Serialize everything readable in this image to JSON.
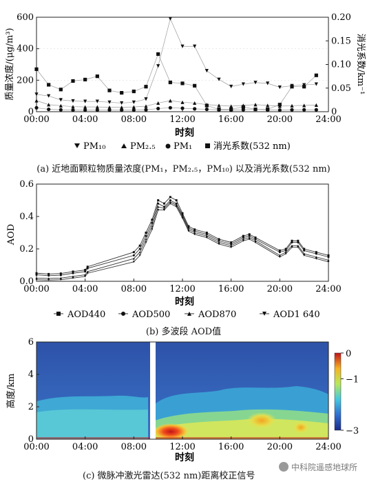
{
  "chart_data": [
    {
      "type": "scatter",
      "panel": "a",
      "xlabel": "时刻",
      "ylabel": "质量浓度/(μg/m³)",
      "ylabel_right": "消光系数/km⁻¹",
      "xticks": [
        "00:00",
        "04:00",
        "08:00",
        "12:00",
        "16:00",
        "20:00",
        "24:00"
      ],
      "yticks": [
        "0",
        "200",
        "400",
        "600"
      ],
      "yticks_right": [
        "0",
        "0.05",
        "0.10",
        "0.15",
        "0.20"
      ],
      "ylim": [
        0,
        600
      ],
      "ylim_right": [
        0,
        0.2
      ],
      "xlim": [
        0,
        24
      ],
      "legend_position": "below",
      "legend": {
        "pm10": "PM₁₀",
        "pm25": "PM₂.₅",
        "pm1": "PM₁",
        "ext": "消光系数(532 nm)"
      },
      "x": [
        0,
        1,
        2,
        3,
        4,
        5,
        6,
        7,
        8,
        9,
        10,
        11,
        12,
        13,
        14,
        15,
        16,
        17,
        18,
        19,
        20,
        21,
        22,
        23
      ],
      "series": [
        {
          "name": "PM₁₀",
          "marker": "triangle-down",
          "axis": "left",
          "values": [
            110,
            100,
            75,
            68,
            65,
            65,
            60,
            55,
            60,
            80,
            290,
            590,
            415,
            415,
            260,
            205,
            160,
            175,
            185,
            180,
            155,
            165,
            170,
            175
          ]
        },
        {
          "name": "PM₂.₅",
          "marker": "triangle-up",
          "axis": "left",
          "values": [
            70,
            45,
            38,
            32,
            30,
            30,
            28,
            28,
            30,
            35,
            55,
            70,
            60,
            55,
            45,
            40,
            35,
            40,
            45,
            40,
            35,
            38,
            40,
            42
          ]
        },
        {
          "name": "PM₁",
          "marker": "circle",
          "axis": "left",
          "values": [
            25,
            15,
            12,
            10,
            10,
            10,
            10,
            10,
            10,
            12,
            20,
            25,
            22,
            18,
            15,
            12,
            10,
            12,
            15,
            12,
            10,
            12,
            12,
            12
          ]
        },
        {
          "name": "消光系数(532 nm)",
          "marker": "square",
          "axis": "right",
          "values": [
            0.09,
            0.057,
            0.047,
            0.065,
            0.068,
            0.075,
            0.045,
            0.04,
            0.043,
            0.053,
            0.122,
            0.062,
            0.06,
            0.055,
            0.013,
            0.005,
            0.005,
            0.01,
            0.005,
            0.005,
            0.015,
            0.053,
            0.053,
            0.077
          ]
        }
      ]
    },
    {
      "type": "line",
      "panel": "b",
      "xlabel": "时刻",
      "ylabel": "AOD",
      "xticks": [
        "00:00",
        "04:00",
        "08:00",
        "12:00",
        "16:00",
        "20:00",
        "24:00"
      ],
      "yticks": [
        "0.0",
        "0.2",
        "0.4",
        "0.6"
      ],
      "ylim": [
        0,
        0.6
      ],
      "xlim": [
        0,
        24
      ],
      "legend_position": "below",
      "x": [
        0,
        1,
        2,
        3,
        4,
        4.2,
        8,
        8.5,
        9,
        9.5,
        10,
        10.5,
        11,
        11.5,
        12,
        12.5,
        13,
        14,
        15,
        16,
        17,
        17.5,
        18,
        20,
        20.5,
        21,
        21.5,
        22,
        23,
        24
      ],
      "series": [
        {
          "name": "AOD440",
          "marker": "square",
          "values": [
            0.05,
            0.045,
            0.048,
            0.06,
            0.07,
            0.09,
            0.18,
            0.22,
            0.3,
            0.38,
            0.5,
            0.48,
            0.52,
            0.5,
            0.42,
            0.34,
            0.32,
            0.3,
            0.26,
            0.24,
            0.28,
            0.29,
            0.27,
            0.19,
            0.2,
            0.25,
            0.25,
            0.2,
            0.18,
            0.16
          ]
        },
        {
          "name": "AOD500",
          "marker": "circle",
          "values": [
            0.04,
            0.035,
            0.038,
            0.05,
            0.06,
            0.08,
            0.16,
            0.2,
            0.28,
            0.36,
            0.48,
            0.46,
            0.5,
            0.48,
            0.41,
            0.33,
            0.31,
            0.29,
            0.25,
            0.23,
            0.27,
            0.28,
            0.26,
            0.18,
            0.19,
            0.24,
            0.24,
            0.19,
            0.17,
            0.15
          ]
        },
        {
          "name": "AOD870",
          "marker": "triangle-up",
          "values": [
            0.02,
            0.018,
            0.02,
            0.03,
            0.04,
            0.06,
            0.14,
            0.18,
            0.26,
            0.34,
            0.46,
            0.45,
            0.49,
            0.47,
            0.4,
            0.32,
            0.3,
            0.28,
            0.24,
            0.22,
            0.26,
            0.27,
            0.25,
            0.16,
            0.18,
            0.22,
            0.22,
            0.17,
            0.15,
            0.13
          ]
        },
        {
          "name": "AOD1 640",
          "marker": "triangle-down",
          "values": [
            0.01,
            0.008,
            0.01,
            0.02,
            0.03,
            0.05,
            0.12,
            0.16,
            0.24,
            0.32,
            0.44,
            0.44,
            0.48,
            0.46,
            0.39,
            0.31,
            0.29,
            0.27,
            0.23,
            0.21,
            0.25,
            0.26,
            0.24,
            0.15,
            0.17,
            0.21,
            0.21,
            0.16,
            0.14,
            0.12
          ]
        }
      ]
    },
    {
      "type": "heatmap",
      "panel": "c",
      "xlabel": "时刻",
      "ylabel": "高度/km",
      "xticks": [
        "00:00",
        "04:00",
        "08:00",
        "12:00",
        "16:00",
        "20:00",
        "24:00"
      ],
      "yticks": [
        "0",
        "2",
        "4",
        "6"
      ],
      "ylim": [
        0,
        6
      ],
      "xlim": [
        0,
        24
      ],
      "colorbar_ticks": [
        "0",
        "−1",
        "−3"
      ],
      "colorbar_range": [
        -3,
        0
      ],
      "data_gap": [
        9.2,
        9.6
      ]
    }
  ],
  "captions": {
    "a": "(a) 近地面颗粒物质量浓度(PM₁，PM₂.₅，PM₁₀) 以及消光系数(532 nm)",
    "b": "(b) 多波段 AOD值",
    "c": "(c) 微脉冲激光雷达(532 nm)距离校正信号"
  },
  "watermark": "中科院遥感地球所"
}
